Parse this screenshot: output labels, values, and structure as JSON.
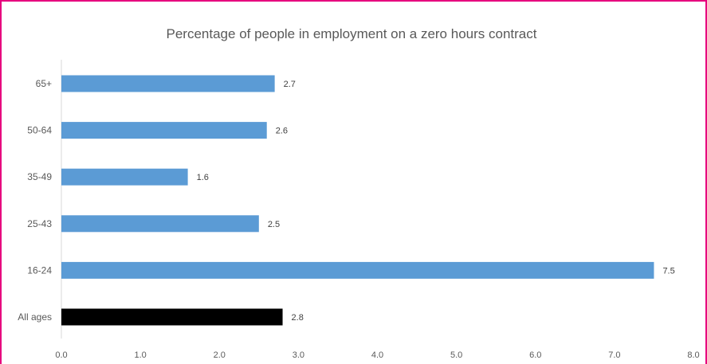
{
  "chart_data": {
    "type": "bar",
    "orientation": "horizontal",
    "title": "Percentage of people in employment on a zero hours contract",
    "xlabel": "",
    "ylabel": "",
    "categories": [
      "65+",
      "50-64",
      "35-49",
      "25-43",
      "16-24",
      "All ages"
    ],
    "values": [
      2.7,
      2.6,
      1.6,
      2.5,
      7.5,
      2.8
    ],
    "data_labels": [
      "2.7",
      "2.6",
      "1.6",
      "2.5",
      "7.5",
      "2.8"
    ],
    "bar_colors": [
      "#5b9bd5",
      "#5b9bd5",
      "#5b9bd5",
      "#5b9bd5",
      "#5b9bd5",
      "#000000"
    ],
    "xlim": [
      0,
      8
    ],
    "xticks": [
      "0.0",
      "1.0",
      "2.0",
      "3.0",
      "4.0",
      "5.0",
      "6.0",
      "7.0",
      "8.0"
    ],
    "grid": false,
    "legend": "none"
  },
  "colors": {
    "frame": "#e6007e",
    "axis": "#d9d9d9",
    "bar": "#5b9bd5",
    "highlight_bar": "#000000"
  }
}
